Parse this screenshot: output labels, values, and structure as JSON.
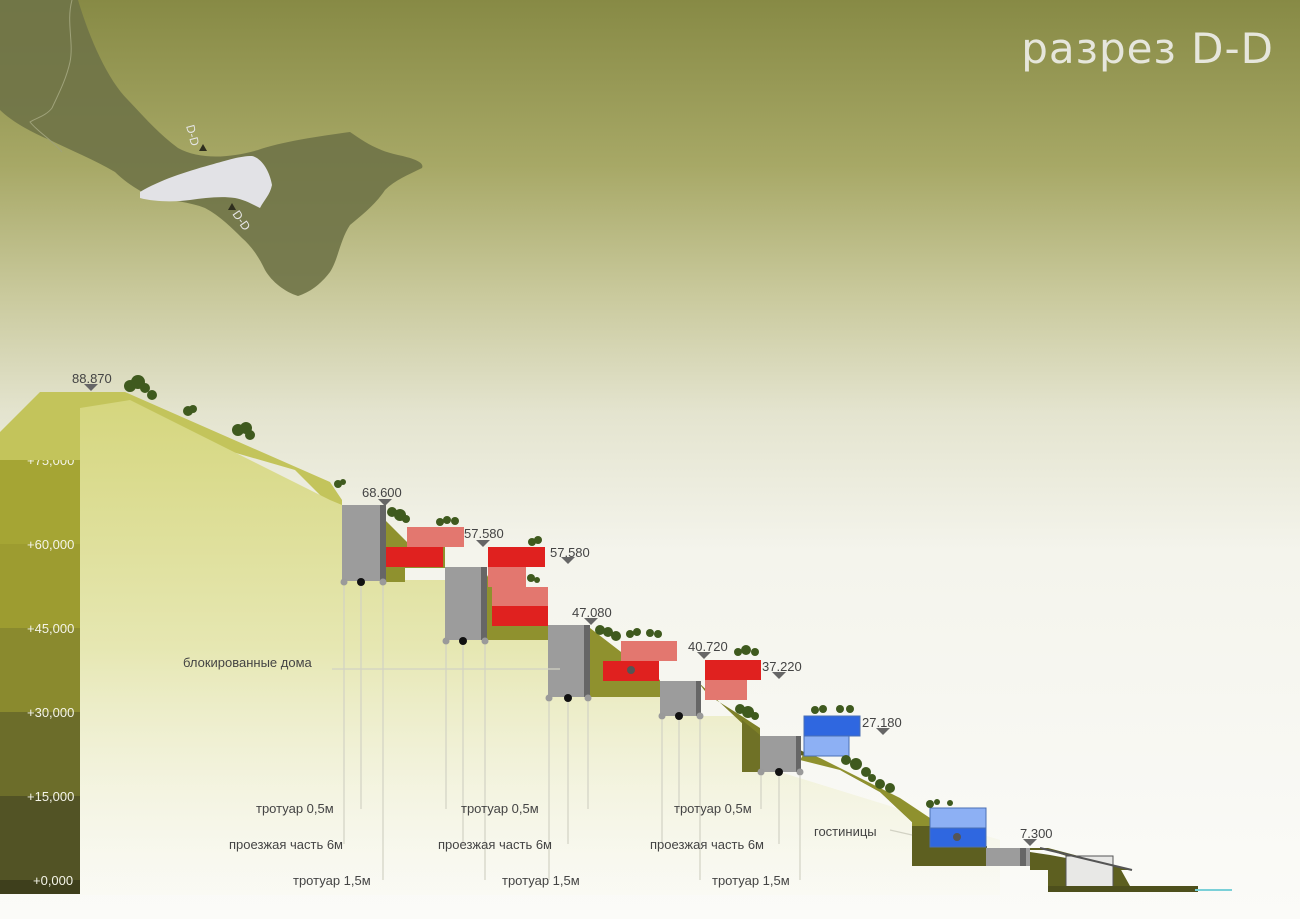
{
  "title": "разрез D-D",
  "map": {
    "marker_label_top": "D-D",
    "marker_label_bottom": "D-D"
  },
  "scale_levels": [
    "+75,000",
    "+60,000",
    "+45,000",
    "+30,000",
    "+15,000",
    "+0,000"
  ],
  "elevations": [
    "88.870",
    "68.600",
    "57.580",
    "57.580",
    "47.080",
    "40.720",
    "37.220",
    "27.180",
    "7.300"
  ],
  "labels": {
    "blocked_houses": "блокированные дома",
    "hotels": "гостиницы",
    "sidewalk_05": "тротуар 0,5м",
    "carriageway_6": "проезжая часть 6м",
    "sidewalk_15": "тротуар 1,5м"
  },
  "colors": {
    "terrain_dark": "#8d8f2d",
    "terrain_light": "#d6d77f",
    "road": "#9c9c9c",
    "houses_red": "#e0211f",
    "houses_pink": "#e3776f",
    "hotels_blue": "#2f67e0",
    "hotels_light_blue": "#8db0f4"
  }
}
